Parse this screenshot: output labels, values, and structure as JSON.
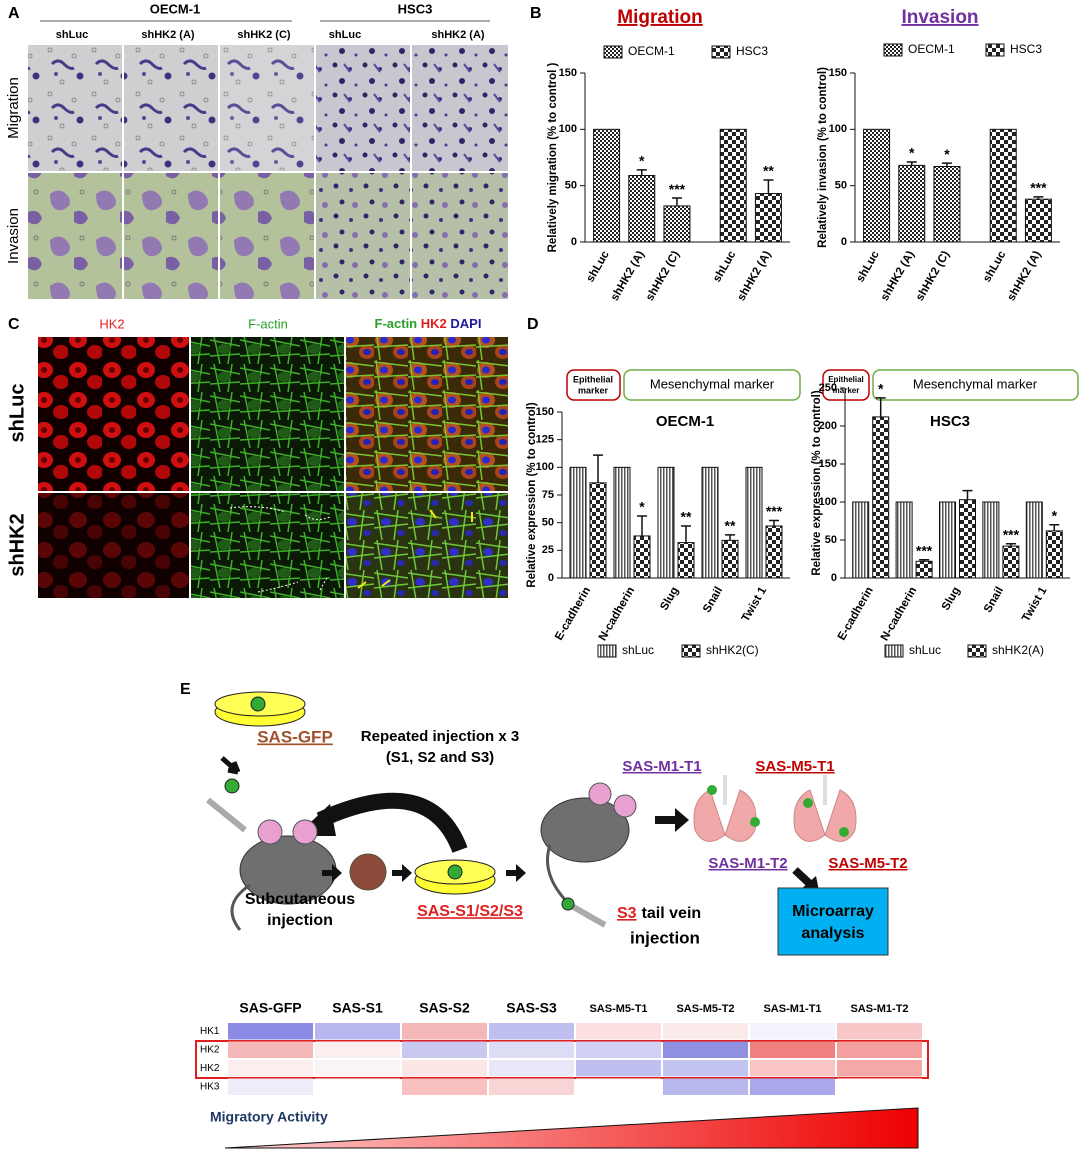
{
  "panel_a": {
    "label": "A",
    "groups": [
      "OECM-1",
      "HSC3"
    ],
    "columns": [
      "shLuc",
      "shHK2 (A)",
      "shHK2 (C)",
      "shLuc",
      "shHK2 (A)"
    ],
    "rows": [
      "Migration",
      "Invasion"
    ]
  },
  "panel_b": {
    "label": "B"
  },
  "panel_c": {
    "label": "C",
    "columns": [
      "HK2",
      "F-actin"
    ],
    "merge": [
      "F-actin",
      "HK2",
      "DAPI"
    ],
    "rows": [
      "shLuc",
      "shHK2"
    ]
  },
  "panel_d": {
    "label": "D",
    "epithelial": [
      "Epithelial",
      "marker"
    ],
    "mesenchymal": "Mesenchymal marker"
  },
  "panel_e": {
    "label": "E",
    "diagram": {
      "sas_gfp": "SAS-GFP",
      "repeat": [
        "Repeated injection  x 3",
        "(S1, S2 and S3)"
      ],
      "subcutaneous": [
        "Subcutaneous",
        "injection"
      ],
      "sas_s": "SAS-S1/S2/S3",
      "tail": [
        "S3",
        "tail vein",
        "injection"
      ],
      "m1t1": "SAS-M1-T1",
      "m5t1": "SAS-M5-T1",
      "m1t2": "SAS-M1-T2",
      "m5t2": "SAS-M5-T2",
      "microarray": [
        "Microarray",
        "analysis"
      ]
    },
    "heatmap": {
      "columns": [
        "SAS-GFP",
        "SAS-S1",
        "SAS-S2",
        "SAS-S3",
        "SAS-M5-T1",
        "SAS-M5-T2",
        "SAS-M1-T1",
        "SAS-M1-T2"
      ],
      "rows": [
        "HK1",
        "HK2",
        "HK2",
        "HK3"
      ],
      "colors": [
        [
          "#8c8ce8",
          "#b8b8f0",
          "#f4b8b8",
          "#c0c0f0",
          "#fce0e0",
          "#fbeaea",
          "#f4f4fc",
          "#f8c8c8"
        ],
        [
          "#f4b8b8",
          "#fbeeee",
          "#c8c8f0",
          "#dcdcf4",
          "#d0d0f4",
          "#9090e0",
          "#f08080",
          "#f4a0a0"
        ],
        [
          "#fceeee",
          "#fbf4f4",
          "#fce6e6",
          "#e8e8f8",
          "#c0c0f0",
          "#c4c4f0",
          "#f8c4c4",
          "#f4a8a8"
        ],
        [
          "#eeeefa",
          "#ffffff",
          "#f8c0c0",
          "#f8d4d4",
          "#ffffff",
          "#b8b8ec",
          "#a8a8ea",
          "#ffffff"
        ]
      ]
    },
    "gradient_label": "Migratory Activity"
  },
  "chart_data": [
    {
      "type": "bar",
      "title": "Migration",
      "title_color": "#c00000",
      "y_label": "Relatively migration (% to control )",
      "categories": [
        "shLuc",
        "shHK2 (A)",
        "shHK2 (C)",
        "shLuc",
        "shHK2 (A)"
      ],
      "series": [
        {
          "name": "OECM-1",
          "values": [
            100,
            59,
            32,
            null,
            null
          ],
          "errors": [
            null,
            5,
            7,
            null,
            null
          ],
          "annotations": [
            null,
            "*",
            "***",
            null,
            null
          ]
        },
        {
          "name": "HSC3",
          "values": [
            null,
            null,
            null,
            100,
            43
          ],
          "errors": [
            null,
            null,
            null,
            null,
            12
          ],
          "annotations": [
            null,
            null,
            null,
            null,
            "**"
          ]
        }
      ],
      "ylim": [
        0,
        150
      ],
      "yticks": [
        0,
        50,
        100,
        150
      ]
    },
    {
      "type": "bar",
      "title": "Invasion",
      "title_color": "#7030a0",
      "y_label": "Relatively invasion (% to control)",
      "categories": [
        "shLuc",
        "shHK2 (A)",
        "shHK2 (C)",
        "shLuc",
        "shHK2 (A)"
      ],
      "series": [
        {
          "name": "OECM-1",
          "values": [
            100,
            68,
            67,
            null,
            null
          ],
          "errors": [
            null,
            3,
            3,
            null,
            null
          ],
          "annotations": [
            null,
            "*",
            "*",
            null,
            null
          ]
        },
        {
          "name": "HSC3",
          "values": [
            null,
            null,
            null,
            100,
            38
          ],
          "errors": [
            null,
            null,
            null,
            null,
            2
          ],
          "annotations": [
            null,
            null,
            null,
            null,
            "***"
          ]
        }
      ],
      "ylim": [
        0,
        150
      ],
      "yticks": [
        0,
        50,
        100,
        150
      ]
    },
    {
      "type": "bar",
      "title": "OECM-1",
      "y_label": "Relative expression (% to control)",
      "categories": [
        "E-cadherin",
        "N-cadherin",
        "Slug",
        "Snail",
        "Twist 1"
      ],
      "series": [
        {
          "name": "shLuc",
          "values": [
            100,
            100,
            100,
            100,
            100
          ]
        },
        {
          "name": "shHK2(C)",
          "values": [
            86,
            38,
            32,
            34,
            47
          ],
          "errors": [
            25,
            18,
            15,
            5,
            5
          ],
          "annotations": [
            null,
            "*",
            "**",
            "**",
            "***"
          ]
        }
      ],
      "ylim": [
        0,
        150
      ],
      "yticks": [
        0,
        25,
        50,
        75,
        100,
        125,
        150
      ]
    },
    {
      "type": "bar",
      "title": "HSC3",
      "y_label": "Relative expression (% to control)",
      "categories": [
        "E-cadherin",
        "N-cadherin",
        "Slug",
        "Snail",
        "Twist 1"
      ],
      "series": [
        {
          "name": "shLuc",
          "values": [
            100,
            100,
            100,
            100,
            100
          ]
        },
        {
          "name": "shHK2(A)",
          "values": [
            212,
            22,
            103,
            42,
            62
          ],
          "errors": [
            25,
            2,
            12,
            3,
            8
          ],
          "annotations": [
            "*",
            "***",
            null,
            "***",
            "*"
          ]
        }
      ],
      "ylim": [
        0,
        250
      ],
      "yticks": [
        0,
        50,
        100,
        150,
        200,
        250
      ]
    }
  ]
}
